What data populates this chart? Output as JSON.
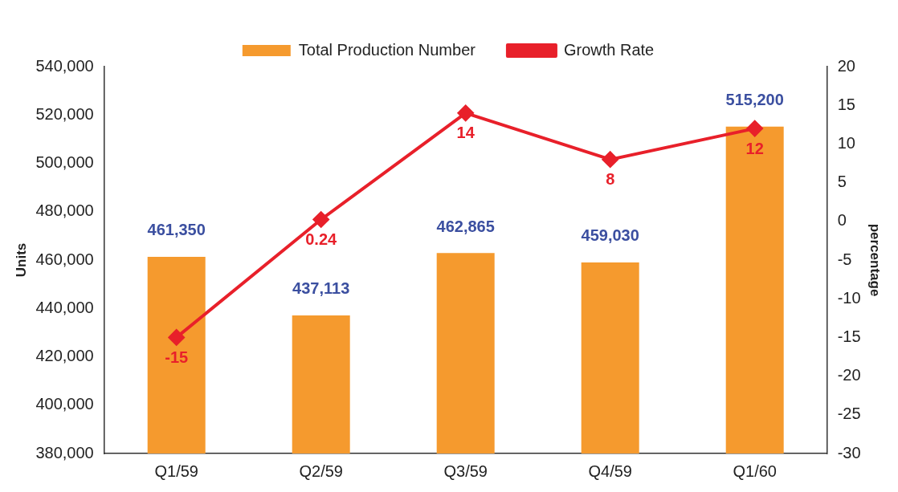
{
  "chart_data": {
    "type": "bar",
    "categories": [
      "Q1/59",
      "Q2/59",
      "Q3/59",
      "Q4/59",
      "Q1/60"
    ],
    "series": [
      {
        "name": "Total Production Number",
        "color": "#f59a2e",
        "values": [
          461350,
          437113,
          462865,
          459030,
          515200
        ],
        "value_labels": [
          "461,350",
          "437,113",
          "462,865",
          "459,030",
          "515,200"
        ]
      },
      {
        "name": "Growth Rate",
        "type": "line",
        "axis": "y2",
        "color": "#e8202a",
        "marker": "diamond",
        "values": [
          -15,
          0.24,
          14,
          8,
          12
        ]
      }
    ],
    "ylabel": "Units",
    "y2label": "percentage",
    "ylim": [
      380000,
      540000
    ],
    "yticks": [
      {
        "value": 380000,
        "label": "380,000"
      },
      {
        "value": 400000,
        "label": "400,000"
      },
      {
        "value": 420000,
        "label": "420,000"
      },
      {
        "value": 440000,
        "label": "440,000"
      },
      {
        "value": 460000,
        "label": "460,000"
      },
      {
        "value": 480000,
        "label": "480,000"
      },
      {
        "value": 500000,
        "label": "500,000"
      },
      {
        "value": 520000,
        "label": "520,000"
      },
      {
        "value": 540000,
        "label": "540,000"
      }
    ],
    "y2lim": [
      -30,
      20
    ],
    "y2ticks": [
      -30,
      -25,
      -20,
      -15,
      -10,
      -5,
      0,
      5,
      10,
      15,
      20
    ],
    "data_labels": true,
    "legend": "top",
    "grid": false
  }
}
